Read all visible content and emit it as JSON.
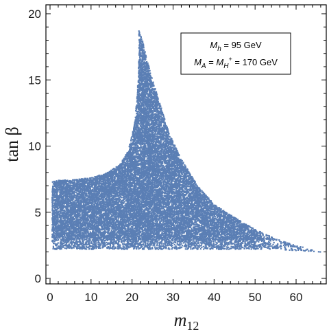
{
  "chart_data": {
    "type": "scatter",
    "xlabel": "m",
    "xlabel_sub": "12",
    "ylabel": "tan β",
    "xlim": [
      0,
      67
    ],
    "ylim": [
      0,
      21
    ],
    "xticks": [
      "0",
      "10",
      "20",
      "30",
      "40",
      "50",
      "60"
    ],
    "xtick_values": [
      0,
      10,
      20,
      30,
      40,
      50,
      60
    ],
    "yticks": [
      "0",
      "5",
      "10",
      "15",
      "20"
    ],
    "ytick_values": [
      0,
      5,
      10,
      15,
      20
    ],
    "grid": false,
    "legend_position": "top-right",
    "legend": {
      "line1": {
        "sym": "M",
        "sub": "h",
        "rest": " = 95 GeV"
      },
      "line2": {
        "sym": "M",
        "sub": "A",
        "mid": " = ",
        "sym2": "M",
        "sub2": "H",
        "sup2": "+",
        "rest": " = 170 GeV"
      }
    },
    "color": "#5b7fb5",
    "allowed_region": {
      "description_boundaries": "scatter filled region",
      "x_min": 0.5,
      "x_max": 66,
      "lower_bound_pts": [
        [
          0.5,
          2.2
        ],
        [
          20,
          2.2
        ],
        [
          40,
          2.2
        ],
        [
          55,
          2.2
        ],
        [
          66,
          2.0
        ]
      ],
      "left_upper_pts": [
        [
          0.5,
          7.4
        ],
        [
          5,
          7.45
        ],
        [
          10,
          7.6
        ],
        [
          14,
          8.0
        ],
        [
          17,
          8.6
        ],
        [
          19,
          9.6
        ],
        [
          20.5,
          11.5
        ],
        [
          21.3,
          14
        ],
        [
          21.7,
          17
        ],
        [
          21.6,
          20
        ]
      ],
      "right_upper_pts": [
        [
          20.2,
          20
        ],
        [
          22.5,
          18
        ],
        [
          24.5,
          15.5
        ],
        [
          27,
          13
        ],
        [
          29,
          11
        ],
        [
          32,
          9
        ],
        [
          36,
          7
        ],
        [
          40,
          5.6
        ],
        [
          45,
          4.6
        ],
        [
          50,
          3.7
        ],
        [
          55,
          3.0
        ],
        [
          60,
          2.5
        ],
        [
          66,
          2.0
        ]
      ]
    }
  }
}
